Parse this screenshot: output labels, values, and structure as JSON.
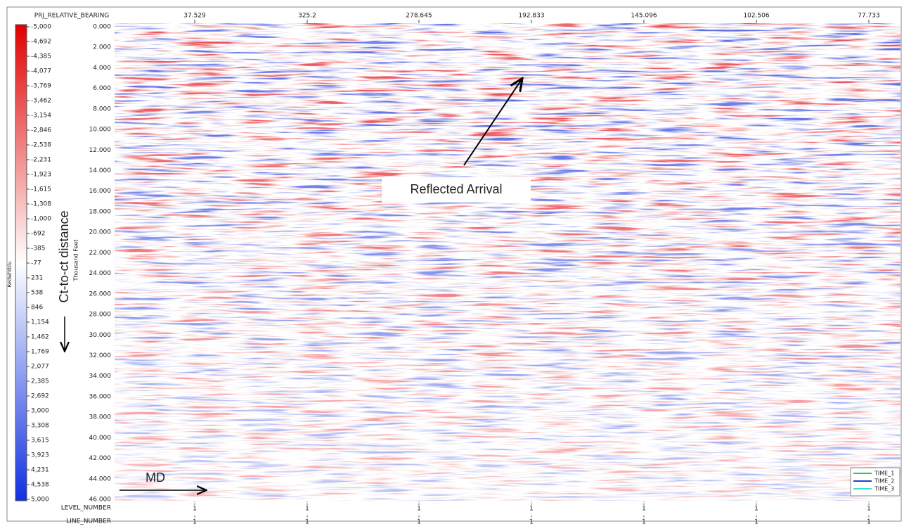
{
  "header": {
    "axis_title": "PRJ_RELATIVE_BEARING",
    "values": [
      "37.529",
      "325.2",
      "278.645",
      "192.833",
      "145.096",
      "102.506",
      "77.733"
    ]
  },
  "colorbar": {
    "title": "Redwhtblu",
    "labels": [
      "-5,000",
      "-4,692",
      "-4,385",
      "-4,077",
      "-3,769",
      "-3,462",
      "-3,154",
      "-2,846",
      "-2,538",
      "-2,231",
      "-1,923",
      "-1,615",
      "-1,308",
      "-1,000",
      "-692",
      "-385",
      "-77",
      "231",
      "538",
      "846",
      "1,154",
      "1,462",
      "1,769",
      "2,077",
      "2,385",
      "2,692",
      "3,000",
      "3,308",
      "3,615",
      "3,923",
      "4,231",
      "4,538",
      "5,000"
    ]
  },
  "depth_axis": {
    "title": "Thousand Feet",
    "labels": [
      "0.000",
      "2.000",
      "4.000",
      "6.000",
      "8.000",
      "10.000",
      "12.000",
      "14.000",
      "16.000",
      "18.000",
      "20.000",
      "22.000",
      "24.000",
      "26.000",
      "28.000",
      "30.000",
      "32.000",
      "34.000",
      "36.000",
      "38.000",
      "40.000",
      "42.000",
      "44.000",
      "46.000"
    ]
  },
  "footer": {
    "rows": [
      {
        "title": "LEVEL_NUMBER",
        "values": [
          "1",
          "1",
          "1",
          "1",
          "1",
          "1",
          "1"
        ]
      },
      {
        "title": "LINE_NUMBER",
        "values": [
          "1",
          "1",
          "1",
          "1",
          "1",
          "1",
          "1"
        ]
      }
    ]
  },
  "annotations": {
    "side_label": "Ct-to-ct distance",
    "md": "MD",
    "reflected": "Reflected Arrival"
  },
  "legend": [
    "TIME_1",
    "TIME_2",
    "TIME_3"
  ]
}
